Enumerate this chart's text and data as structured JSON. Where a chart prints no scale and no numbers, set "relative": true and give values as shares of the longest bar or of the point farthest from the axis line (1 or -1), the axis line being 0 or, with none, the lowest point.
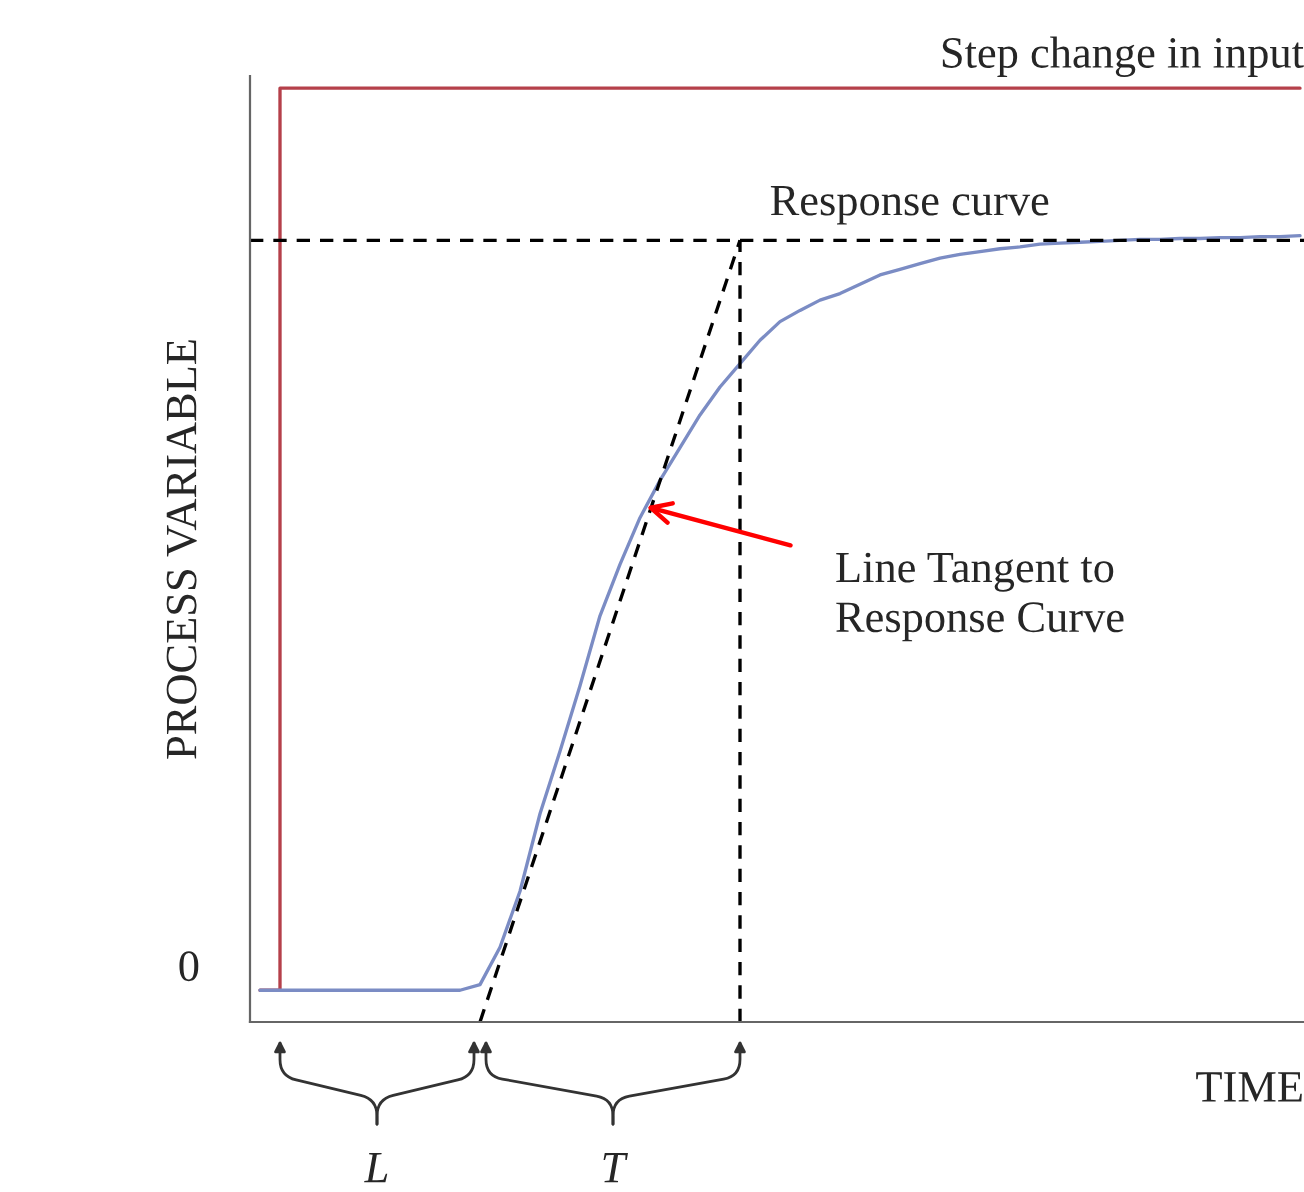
{
  "chart_data": {
    "type": "line",
    "relative": true,
    "xlabel": "TIME",
    "ylabel": "PROCESS VARIABLE",
    "categories": [
      null,
      null,
      null,
      null,
      null,
      null,
      null,
      null,
      null,
      null,
      null,
      null,
      null,
      null,
      null,
      null,
      null,
      null,
      null,
      null,
      null,
      null,
      null,
      null,
      null,
      null,
      null,
      null,
      null,
      null,
      null,
      null,
      null,
      null,
      null,
      null,
      null,
      null,
      null,
      null,
      null,
      null,
      null,
      null,
      null,
      null,
      null,
      null,
      null,
      null,
      null,
      null,
      null
    ],
    "series": [
      {
        "name": "Step change in input",
        "type": "step",
        "color": "#b5404a",
        "values": [
          0.034,
          1,
          1,
          1,
          1,
          1,
          1,
          1,
          1,
          1,
          1,
          1,
          1,
          1,
          1,
          1,
          1,
          1,
          1,
          1,
          1,
          1,
          1,
          1,
          1,
          1,
          1,
          1,
          1,
          1,
          1,
          1,
          1,
          1,
          1,
          1,
          1,
          1,
          1,
          1,
          1,
          1,
          1,
          1,
          1,
          1,
          1,
          1,
          1,
          1,
          1,
          1,
          1
        ]
      },
      {
        "name": "Response curve",
        "color": "#7b8cc4",
        "values": [
          0.034,
          0.034,
          0.034,
          0.034,
          0.034,
          0.034,
          0.034,
          0.034,
          0.034,
          0.034,
          0.034,
          0.04,
          0.08,
          0.14,
          0.223,
          0.29,
          0.36,
          0.435,
          0.49,
          0.54,
          0.58,
          0.615,
          0.65,
          0.68,
          0.705,
          0.73,
          0.75,
          0.762,
          0.773,
          0.78,
          0.79,
          0.8,
          0.806,
          0.812,
          0.818,
          0.822,
          0.825,
          0.828,
          0.83,
          0.833,
          0.834,
          0.835,
          0.836,
          0.837,
          0.838,
          0.838,
          0.839,
          0.839,
          0.84,
          0.84,
          0.841,
          0.841,
          0.842
        ]
      },
      {
        "line_style": "dashed",
        "color": "#000000",
        "values": [
          null,
          null,
          null,
          null,
          null,
          null,
          null,
          null,
          null,
          null,
          null,
          0,
          null,
          null,
          null,
          null,
          null,
          null,
          null,
          null,
          null,
          null,
          null,
          null,
          0.837,
          null,
          null,
          null,
          null,
          null,
          null,
          null,
          null,
          null,
          null,
          null,
          null,
          null,
          null,
          null,
          null,
          null,
          null,
          null,
          null,
          null,
          null,
          null,
          null,
          null,
          null,
          null,
          null
        ]
      }
    ],
    "ref_lines": [
      {
        "axis": "y",
        "value": 0.837,
        "color": "#000000",
        "line_style": "dashed"
      }
    ],
    "annotations": [
      "Line Tangent to\nResponse Curve",
      "0",
      "L",
      "T"
    ]
  }
}
